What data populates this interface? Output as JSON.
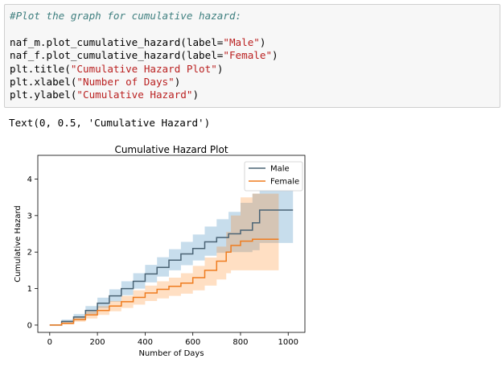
{
  "code_cell": {
    "comment": "#Plot the graph for cumulative hazard:",
    "lines": [
      {
        "pre": "naf_m.plot_cumulative_hazard(label=",
        "str": "\"Male\"",
        "post": ")"
      },
      {
        "pre": "naf_f.plot_cumulative_hazard(label=",
        "str": "\"Female\"",
        "post": ")"
      },
      {
        "pre": "plt.title(",
        "str": "\"Cumulative Hazard Plot\"",
        "post": ")"
      },
      {
        "pre": "plt.xlabel(",
        "str": "\"Number of Days\"",
        "post": ")"
      },
      {
        "pre": "plt.ylabel(",
        "str": "\"Cumulative Hazard\"",
        "post": ")"
      }
    ]
  },
  "output": {
    "text": "Text(0, 0.5, 'Cumulative Hazard')"
  },
  "chart_data": {
    "type": "line",
    "title": "Cumulative Hazard Plot",
    "xlabel": "Number of Days",
    "ylabel": "Cumulative Hazard",
    "xlim": [
      -50,
      1070
    ],
    "ylim": [
      -0.2,
      4.65
    ],
    "xticks": [
      0,
      200,
      400,
      600,
      800,
      1000
    ],
    "yticks": [
      0,
      1,
      2,
      3,
      4
    ],
    "legend_position": "top-right",
    "grid": false,
    "series": [
      {
        "name": "Male",
        "color": "#4a6374",
        "band_color": "#1f77b4",
        "x": [
          0,
          50,
          100,
          150,
          200,
          250,
          300,
          350,
          400,
          450,
          500,
          550,
          600,
          650,
          700,
          750,
          800,
          850,
          880,
          1020
        ],
        "y": [
          0,
          0.1,
          0.22,
          0.4,
          0.6,
          0.8,
          1.0,
          1.2,
          1.4,
          1.58,
          1.78,
          1.95,
          2.1,
          2.28,
          2.4,
          2.5,
          2.6,
          2.8,
          3.15,
          3.15
        ],
        "lower": [
          0,
          0.05,
          0.15,
          0.3,
          0.47,
          0.64,
          0.82,
          1.0,
          1.17,
          1.33,
          1.5,
          1.64,
          1.77,
          1.9,
          1.98,
          2.0,
          2.0,
          2.05,
          2.25,
          2.25
        ],
        "upper": [
          0,
          0.15,
          0.3,
          0.52,
          0.75,
          0.98,
          1.2,
          1.42,
          1.65,
          1.86,
          2.08,
          2.28,
          2.48,
          2.7,
          2.9,
          3.1,
          3.35,
          3.6,
          4.05,
          4.05
        ]
      },
      {
        "name": "Female",
        "color": "#ef7c1f",
        "band_color": "#ff7f0e",
        "x": [
          0,
          50,
          100,
          150,
          200,
          250,
          300,
          350,
          400,
          450,
          500,
          550,
          600,
          650,
          700,
          740,
          760,
          800,
          850,
          960
        ],
        "y": [
          0,
          0.05,
          0.15,
          0.28,
          0.4,
          0.52,
          0.64,
          0.76,
          0.88,
          0.98,
          1.06,
          1.15,
          1.3,
          1.5,
          1.75,
          2.0,
          2.18,
          2.3,
          2.35,
          2.35
        ],
        "lower": [
          0,
          0.02,
          0.09,
          0.18,
          0.28,
          0.38,
          0.47,
          0.56,
          0.66,
          0.73,
          0.8,
          0.86,
          0.95,
          1.08,
          1.25,
          1.42,
          1.5,
          1.5,
          1.5,
          1.5
        ],
        "upper": [
          0,
          0.09,
          0.22,
          0.38,
          0.52,
          0.66,
          0.8,
          0.95,
          1.08,
          1.2,
          1.3,
          1.42,
          1.62,
          1.85,
          2.15,
          2.55,
          3.0,
          3.5,
          3.6,
          3.6
        ]
      }
    ]
  }
}
